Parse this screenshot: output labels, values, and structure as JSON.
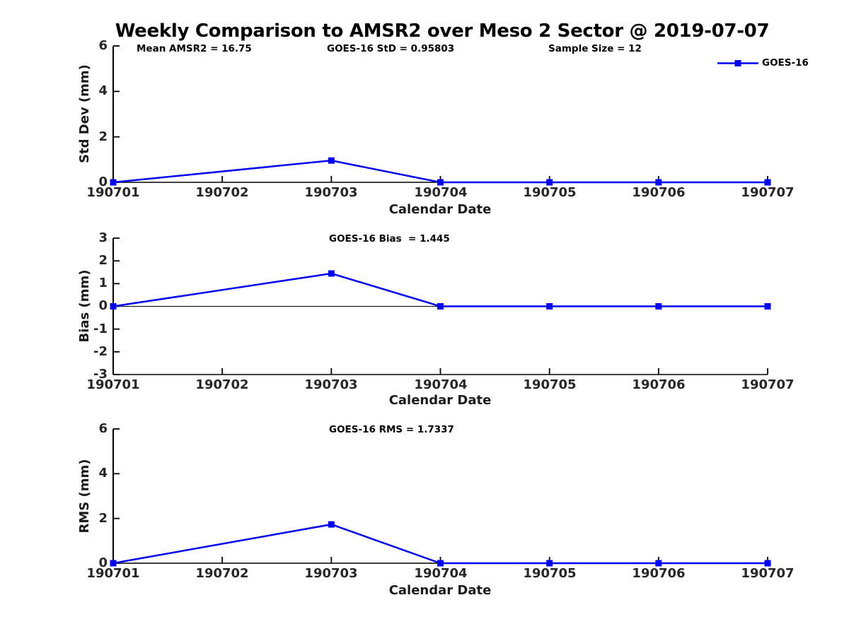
{
  "figure": {
    "title": "Weekly Comparison to AMSR2 over Meso 2 Sector @ 2019-07-07",
    "background_color": "#ffffff",
    "text_color": "#000000",
    "tick_label_color": "#262626",
    "axis_color": "#000000",
    "line_color": "#0000ee"
  },
  "chart_data": [
    {
      "type": "line",
      "panel": "std_dev",
      "annotations": [
        "Mean AMSR2 = 16.75",
        "GOES-16 StD = 0.95803",
        "Sample Size = 12"
      ],
      "xlabel": "Calendar Date",
      "ylabel": "Std Dev (mm)",
      "categories": [
        "190701",
        "190702",
        "190703",
        "190704",
        "190705",
        "190706",
        "190707"
      ],
      "ylim": [
        0,
        6
      ],
      "yticks": [
        0,
        2,
        4,
        6
      ],
      "grid": false,
      "legend": {
        "visible": true,
        "position": "top-right"
      },
      "series": [
        {
          "name": "GOES-16",
          "color": "#0000ee",
          "marker": "filled-square",
          "points": [
            [
              "190701",
              0
            ],
            [
              "190703",
              0.95803
            ],
            [
              "190704",
              0
            ],
            [
              "190705",
              0
            ],
            [
              "190706",
              0
            ],
            [
              "190707",
              0
            ]
          ]
        }
      ]
    },
    {
      "type": "line",
      "panel": "bias",
      "annotations": [
        "GOES-16 Bias  = 1.445"
      ],
      "xlabel": "Calendar Date",
      "ylabel": "Bias (mm)",
      "categories": [
        "190701",
        "190702",
        "190703",
        "190704",
        "190705",
        "190706",
        "190707"
      ],
      "ylim": [
        -3,
        3
      ],
      "yticks": [
        -3,
        -2,
        -1,
        0,
        1,
        2,
        3
      ],
      "zero_line": true,
      "grid": false,
      "legend": {
        "visible": false
      },
      "series": [
        {
          "name": "GOES-16",
          "color": "#0000ee",
          "marker": "filled-square",
          "points": [
            [
              "190701",
              0
            ],
            [
              "190703",
              1.445
            ],
            [
              "190704",
              0
            ],
            [
              "190705",
              0
            ],
            [
              "190706",
              0
            ],
            [
              "190707",
              0
            ]
          ]
        }
      ]
    },
    {
      "type": "line",
      "panel": "rms",
      "annotations": [
        "GOES-16 RMS = 1.7337"
      ],
      "xlabel": "Calendar Date",
      "ylabel": "RMS (mm)",
      "categories": [
        "190701",
        "190702",
        "190703",
        "190704",
        "190705",
        "190706",
        "190707"
      ],
      "ylim": [
        0,
        6
      ],
      "yticks": [
        0,
        2,
        4,
        6
      ],
      "grid": false,
      "legend": {
        "visible": false
      },
      "series": [
        {
          "name": "GOES-16",
          "color": "#0000ee",
          "marker": "filled-square",
          "points": [
            [
              "190701",
              0
            ],
            [
              "190703",
              1.7337
            ],
            [
              "190704",
              0
            ],
            [
              "190705",
              0
            ],
            [
              "190706",
              0
            ],
            [
              "190707",
              0
            ]
          ]
        }
      ]
    }
  ]
}
